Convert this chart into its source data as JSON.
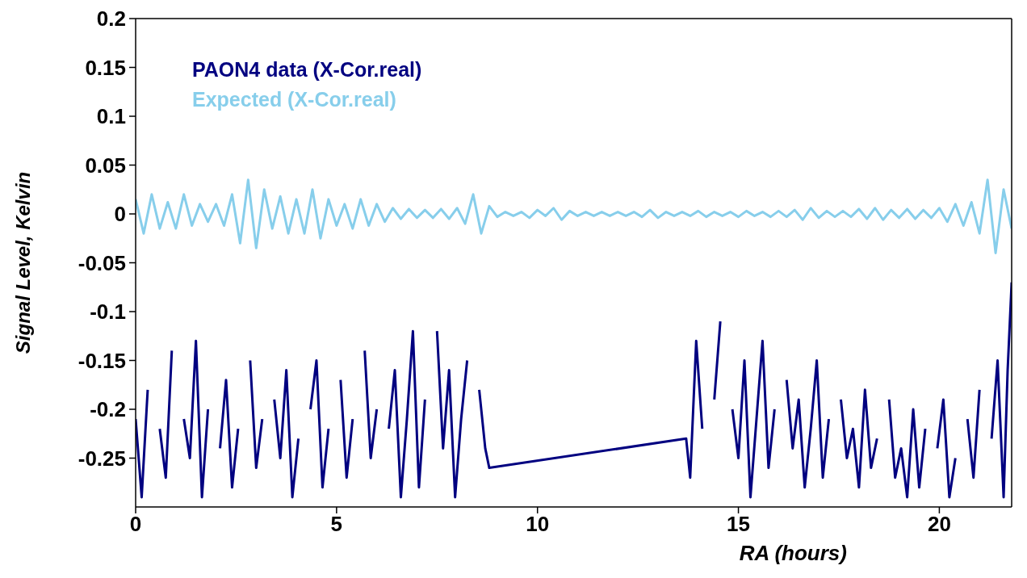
{
  "chart_data": {
    "type": "line",
    "xlabel": "RA (hours)",
    "ylabel": "Signal Level, Kelvin",
    "xlim": [
      0,
      21.8
    ],
    "xticks": [
      0,
      5,
      10,
      15,
      20
    ],
    "ylim": [
      -0.3,
      0.2
    ],
    "yticks": [
      -0.25,
      -0.2,
      -0.15,
      -0.1,
      -0.05,
      0,
      0.05,
      0.1,
      0.15,
      0.2
    ],
    "legend": "top left",
    "marker": "none",
    "line_style": "solid",
    "series": [
      {
        "name": "PAON4 data (X-Cor.real)",
        "color": "#000080",
        "x": [
          0,
          0.15,
          0.3,
          0.45,
          0.6,
          0.75,
          0.9,
          1.05,
          1.2,
          1.35,
          1.5,
          1.65,
          1.8,
          1.95,
          2.1,
          2.25,
          2.4,
          2.55,
          2.7,
          2.85,
          3.0,
          3.15,
          3.3,
          3.45,
          3.6,
          3.75,
          3.9,
          4.05,
          4.2,
          4.35,
          4.5,
          4.65,
          4.8,
          4.95,
          5.1,
          5.25,
          5.4,
          5.55,
          5.7,
          5.85,
          6.0,
          6.15,
          6.3,
          6.45,
          6.6,
          6.75,
          6.9,
          7.05,
          7.2,
          7.35,
          7.5,
          7.65,
          7.8,
          7.95,
          8.1,
          8.25,
          8.4,
          8.55,
          8.7,
          8.8,
          13.7,
          13.8,
          13.95,
          14.1,
          14.25,
          14.4,
          14.55,
          14.7,
          14.85,
          15.0,
          15.15,
          15.3,
          15.45,
          15.6,
          15.75,
          15.9,
          16.05,
          16.2,
          16.35,
          16.5,
          16.65,
          16.8,
          16.95,
          17.1,
          17.25,
          17.4,
          17.55,
          17.7,
          17.85,
          18.0,
          18.15,
          18.3,
          18.45,
          18.6,
          18.75,
          18.9,
          19.05,
          19.2,
          19.35,
          19.5,
          19.65,
          19.8,
          19.95,
          20.1,
          20.25,
          20.4,
          20.55,
          20.7,
          20.85,
          21.0,
          21.15,
          21.3,
          21.45,
          21.6,
          21.7,
          21.8
        ],
        "values": [
          -0.21,
          -0.29,
          -0.18,
          null,
          -0.22,
          -0.27,
          -0.14,
          null,
          -0.21,
          -0.25,
          -0.13,
          -0.29,
          -0.2,
          null,
          -0.24,
          -0.17,
          -0.28,
          -0.22,
          null,
          -0.15,
          -0.26,
          -0.21,
          null,
          -0.19,
          -0.25,
          -0.16,
          -0.29,
          -0.23,
          null,
          -0.2,
          -0.15,
          -0.28,
          -0.22,
          null,
          -0.17,
          -0.27,
          -0.21,
          null,
          -0.14,
          -0.25,
          -0.2,
          null,
          -0.22,
          -0.16,
          -0.29,
          -0.21,
          -0.12,
          -0.28,
          -0.19,
          null,
          -0.12,
          -0.24,
          -0.16,
          -0.29,
          -0.21,
          -0.15,
          null,
          -0.18,
          -0.24,
          -0.26,
          -0.23,
          -0.27,
          -0.13,
          -0.22,
          null,
          -0.19,
          -0.11,
          null,
          -0.2,
          -0.25,
          -0.15,
          -0.29,
          -0.21,
          -0.13,
          -0.26,
          -0.2,
          null,
          -0.17,
          -0.24,
          -0.19,
          -0.28,
          -0.22,
          -0.15,
          -0.27,
          -0.21,
          null,
          -0.19,
          -0.25,
          -0.22,
          -0.28,
          -0.18,
          -0.26,
          -0.23,
          null,
          -0.19,
          -0.27,
          -0.24,
          -0.29,
          -0.2,
          -0.28,
          -0.22,
          null,
          -0.24,
          -0.19,
          -0.29,
          -0.25,
          null,
          -0.21,
          -0.27,
          -0.18,
          null,
          -0.23,
          -0.15,
          -0.29,
          -0.16,
          -0.07
        ]
      },
      {
        "name": "Expected (X-Cor.real)",
        "color": "#87ceeb",
        "x": [
          0,
          0.2,
          0.4,
          0.6,
          0.8,
          1.0,
          1.2,
          1.4,
          1.6,
          1.8,
          2.0,
          2.2,
          2.4,
          2.6,
          2.8,
          3.0,
          3.2,
          3.4,
          3.6,
          3.8,
          4.0,
          4.2,
          4.4,
          4.6,
          4.8,
          5.0,
          5.2,
          5.4,
          5.6,
          5.8,
          6.0,
          6.2,
          6.4,
          6.6,
          6.8,
          7.0,
          7.2,
          7.4,
          7.6,
          7.8,
          8.0,
          8.2,
          8.4,
          8.6,
          8.8,
          9.0,
          9.2,
          9.4,
          9.6,
          9.8,
          10.0,
          10.2,
          10.4,
          10.6,
          10.8,
          11.0,
          11.2,
          11.4,
          11.6,
          11.8,
          12.0,
          12.2,
          12.4,
          12.6,
          12.8,
          13.0,
          13.2,
          13.4,
          13.6,
          13.8,
          14.0,
          14.2,
          14.4,
          14.6,
          14.8,
          15.0,
          15.2,
          15.4,
          15.6,
          15.8,
          16.0,
          16.2,
          16.4,
          16.6,
          16.8,
          17.0,
          17.2,
          17.4,
          17.6,
          17.8,
          18.0,
          18.2,
          18.4,
          18.6,
          18.8,
          19.0,
          19.2,
          19.4,
          19.6,
          19.8,
          20.0,
          20.2,
          20.4,
          20.6,
          20.8,
          21.0,
          21.2,
          21.4,
          21.6,
          21.8
        ],
        "values": [
          0.015,
          -0.02,
          0.02,
          -0.015,
          0.012,
          -0.015,
          0.02,
          -0.012,
          0.01,
          -0.008,
          0.01,
          -0.012,
          0.02,
          -0.03,
          0.035,
          -0.035,
          0.025,
          -0.015,
          0.018,
          -0.02,
          0.015,
          -0.02,
          0.025,
          -0.025,
          0.015,
          -0.012,
          0.01,
          -0.015,
          0.015,
          -0.012,
          0.01,
          -0.008,
          0.006,
          -0.005,
          0.005,
          -0.004,
          0.004,
          -0.004,
          0.005,
          -0.005,
          0.006,
          -0.01,
          0.02,
          -0.02,
          0.008,
          -0.003,
          0.002,
          -0.002,
          0.002,
          -0.004,
          0.004,
          -0.002,
          0.006,
          -0.006,
          0.003,
          -0.002,
          0.002,
          -0.002,
          0.002,
          -0.002,
          0.002,
          -0.002,
          0.002,
          -0.003,
          0.004,
          -0.004,
          0.002,
          -0.002,
          0.002,
          -0.002,
          0.003,
          -0.003,
          0.002,
          -0.002,
          0.002,
          -0.003,
          0.003,
          -0.002,
          0.002,
          -0.003,
          0.003,
          -0.003,
          0.004,
          -0.006,
          0.006,
          -0.004,
          0.003,
          -0.003,
          0.003,
          -0.003,
          0.005,
          -0.005,
          0.006,
          -0.006,
          0.004,
          -0.004,
          0.005,
          -0.005,
          0.004,
          -0.004,
          0.006,
          -0.008,
          0.01,
          -0.012,
          0.012,
          -0.02,
          0.035,
          -0.04,
          0.025,
          -0.015
        ]
      }
    ]
  }
}
